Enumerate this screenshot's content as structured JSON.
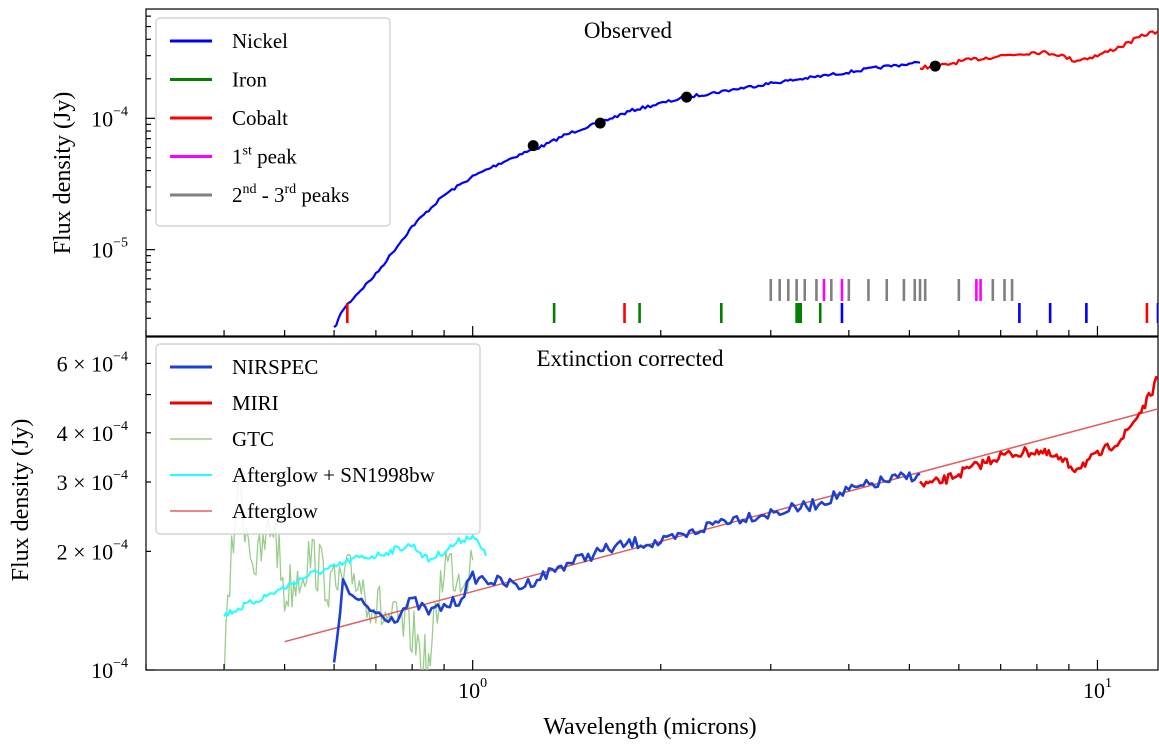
{
  "figure": {
    "xlabel": "Wavelength (microns)",
    "xlim": [
      0.3,
      12.5
    ],
    "x_ticks": [
      {
        "value": 1,
        "label": "10",
        "exp": "0"
      },
      {
        "value": 10,
        "label": "10",
        "exp": "1"
      }
    ]
  },
  "chart_data": [
    {
      "type": "line",
      "title": "Observed",
      "ylabel": "Flux density (Jy)",
      "yscale": "log",
      "xscale": "log",
      "ylim": [
        2.2e-06,
        0.00068
      ],
      "y_ticks": [
        {
          "value": 0.0001,
          "label": "10",
          "exp": "−4"
        },
        {
          "value": 1e-05,
          "label": "10",
          "exp": "−5"
        }
      ],
      "legend_position": "top-left",
      "legend": [
        {
          "label": "Nickel",
          "color": "#0000ff"
        },
        {
          "label": "Iron",
          "color": "#008000"
        },
        {
          "label": "Cobalt",
          "color": "#ff0000"
        },
        {
          "label": "1",
          "sup": "st",
          "suffix": " peak",
          "color": "#ff00ff"
        },
        {
          "label": "2",
          "sup": "nd",
          "mid": " - 3",
          "sup2": "rd",
          "suffix": " peaks",
          "color": "#808080"
        }
      ],
      "series": [
        {
          "name": "Nickel",
          "color": "#0000ff",
          "x": [
            0.6,
            0.62,
            0.65,
            0.7,
            0.75,
            0.8,
            0.85,
            0.9,
            1.0,
            1.1,
            1.2,
            1.3,
            1.4,
            1.5,
            1.6,
            1.8,
            2.0,
            2.2,
            2.5,
            3.0,
            3.5,
            4.0,
            4.5,
            5.0,
            5.2
          ],
          "y": [
            2.5e-06,
            3.5e-06,
            4.5e-06,
            6.5e-06,
            1e-05,
            1.5e-05,
            2e-05,
            2.6e-05,
            3.6e-05,
            4.5e-05,
            5.4e-05,
            6.2e-05,
            7.4e-05,
            8.4e-05,
            9.3e-05,
            0.000115,
            0.00013,
            0.000145,
            0.00016,
            0.000185,
            0.000205,
            0.000225,
            0.000245,
            0.00026,
            0.000265
          ]
        },
        {
          "name": "Cobalt",
          "color": "#ff0000",
          "x": [
            5.2,
            5.6,
            6.0,
            7.0,
            8.0,
            8.6,
            9.2,
            10.0,
            11.0,
            12.0,
            12.5
          ],
          "y": [
            0.000245,
            0.00025,
            0.00027,
            0.0003,
            0.00032,
            0.00031,
            0.000275,
            0.0003,
            0.00036,
            0.00044,
            0.00046
          ]
        }
      ],
      "photometry_points": {
        "color": "#000000",
        "x": [
          1.25,
          1.6,
          2.2,
          5.5
        ],
        "y": [
          6.2e-05,
          9.2e-05,
          0.000145,
          0.00025
        ]
      },
      "line_markers": [
        {
          "element": "Cobalt",
          "color": "#ff0000",
          "row": "low",
          "x": [
            0.63,
            1.75,
            12.0
          ]
        },
        {
          "element": "Iron",
          "color": "#008000",
          "row": "low",
          "x": [
            1.35,
            1.85,
            2.5,
            3.3,
            3.32,
            3.35,
            3.6
          ]
        },
        {
          "element": "Nickel",
          "color": "#0000ff",
          "row": "low",
          "x": [
            3.9,
            7.5,
            8.4,
            9.6,
            12.5
          ]
        },
        {
          "element": "1st peak",
          "color": "#ff00ff",
          "row": "high",
          "x": [
            3.65,
            3.9,
            6.4,
            6.5
          ]
        },
        {
          "element": "2nd - 3rd peaks",
          "color": "#808080",
          "row": "high",
          "x": [
            3.0,
            3.1,
            3.2,
            3.3,
            3.4,
            3.55,
            3.75,
            4.0,
            4.3,
            4.6,
            4.9,
            5.1,
            5.2,
            5.3,
            6.0,
            6.8,
            7.1,
            7.3
          ]
        }
      ]
    },
    {
      "type": "line",
      "title": "Extinction corrected",
      "ylabel": "Flux density (Jy)",
      "yscale": "log",
      "xscale": "log",
      "ylim": [
        0.0001,
        0.0007
      ],
      "y_ticks": [
        {
          "value": 0.0001,
          "label": "10",
          "exp": "−4"
        },
        {
          "value": 0.0002,
          "label": "2 × 10",
          "exp": "−4"
        },
        {
          "value": 0.0003,
          "label": "3 × 10",
          "exp": "−4"
        },
        {
          "value": 0.0004,
          "label": "4 × 10",
          "exp": "−4"
        },
        {
          "value": 0.0006,
          "label": "6 × 10",
          "exp": "−4"
        }
      ],
      "legend_position": "top-left",
      "legend": [
        {
          "label": "NIRSPEC",
          "color": "#1f3fd0",
          "width": 3
        },
        {
          "label": "MIRI",
          "color": "#ee0000",
          "width": 3
        },
        {
          "label": "GTC",
          "color": "#9acd8c",
          "width": 1.5
        },
        {
          "label": "Afterglow + SN1998bw",
          "color": "#22ffff",
          "width": 2
        },
        {
          "label": "Afterglow",
          "color": "#e06060",
          "width": 1.5
        }
      ],
      "series": [
        {
          "name": "NIRSPEC",
          "color": "#1f3fd0",
          "x": [
            0.6,
            0.62,
            0.65,
            0.7,
            0.75,
            0.8,
            0.85,
            0.9,
            0.95,
            1.0,
            1.2,
            1.4,
            1.6,
            1.8,
            2.0,
            2.2,
            2.5,
            3.0,
            3.5,
            4.0,
            4.5,
            5.0,
            5.2
          ],
          "y": [
            0.000105,
            0.000165,
            0.00015,
            0.00014,
            0.000135,
            0.00015,
            0.00014,
            0.000145,
            0.00015,
            0.000172,
            0.000163,
            0.000185,
            0.0002,
            0.00021,
            0.00021,
            0.00022,
            0.00024,
            0.00025,
            0.000262,
            0.000285,
            0.0003,
            0.00031,
            0.000315
          ]
        },
        {
          "name": "MIRI",
          "color": "#ee0000",
          "x": [
            5.2,
            5.6,
            6.0,
            7.0,
            8.0,
            8.6,
            9.2,
            10.0,
            11.0,
            12.0,
            12.5
          ],
          "y": [
            0.000295,
            0.0003,
            0.000315,
            0.00035,
            0.00036,
            0.000345,
            0.000325,
            0.00035,
            0.00039,
            0.00048,
            0.00055
          ]
        },
        {
          "name": "GTC",
          "color": "#9acd8c",
          "x": [
            0.4,
            0.42,
            0.45,
            0.48,
            0.5,
            0.55,
            0.6,
            0.65,
            0.7,
            0.75,
            0.8,
            0.85,
            0.9,
            0.95,
            1.0
          ],
          "y": [
            0.0001,
            0.0003,
            0.00018,
            0.00024,
            0.000155,
            0.000195,
            0.00016,
            0.000175,
            0.000145,
            0.00013,
            0.000125,
            0.0001,
            0.00019,
            0.000175,
            0.00019
          ]
        },
        {
          "name": "Afterglow + SN1998bw",
          "color": "#22ffff",
          "x": [
            0.4,
            0.45,
            0.5,
            0.55,
            0.6,
            0.65,
            0.7,
            0.75,
            0.8,
            0.85,
            0.9,
            0.95,
            1.0,
            1.05
          ],
          "y": [
            0.000138,
            0.00015,
            0.000162,
            0.000175,
            0.000182,
            0.000192,
            0.000195,
            0.000202,
            0.000208,
            0.00019,
            0.0002,
            0.000212,
            0.00022,
            0.000195
          ]
        },
        {
          "name": "Afterglow",
          "color": "#e06060",
          "x": [
            0.5,
            12.5
          ],
          "y": [
            0.000118,
            0.00046
          ]
        }
      ]
    }
  ]
}
